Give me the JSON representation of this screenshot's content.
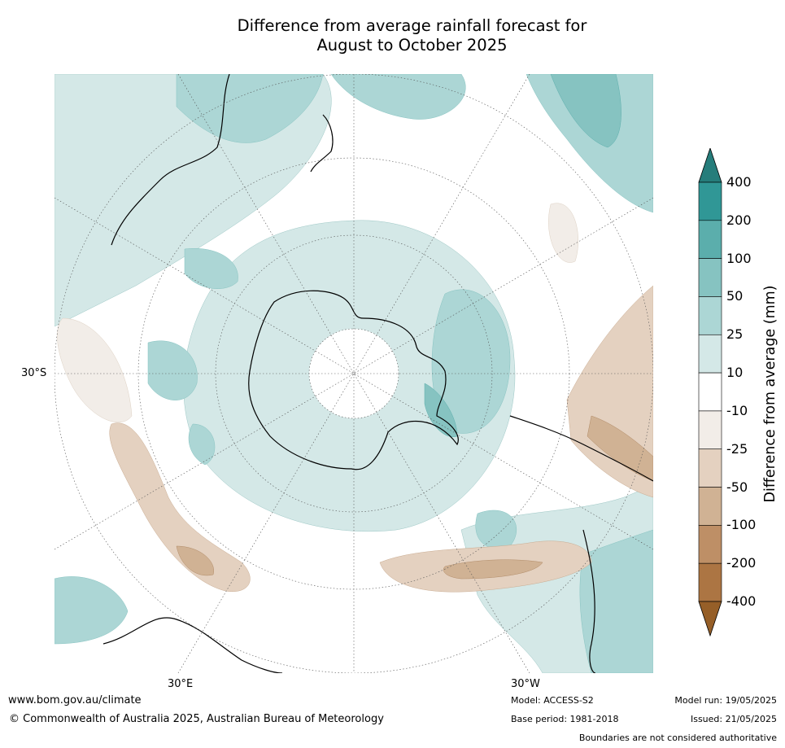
{
  "title_line1": "Difference from average rainfall forecast for",
  "title_line2": "August to October 2025",
  "map_labels": {
    "lat_30s": "30°S",
    "lon_30e": "30°E",
    "lon_30w": "30°W"
  },
  "legend": {
    "title": "Difference from average (mm)",
    "ticks": [
      "400",
      "200",
      "100",
      "50",
      "25",
      "10",
      "-10",
      "-25",
      "-50",
      "-100",
      "-200",
      "-400"
    ],
    "colors": {
      "over": "#267d7b",
      "bands": [
        "#309796",
        "#5baeac",
        "#86c3c1",
        "#acd6d5",
        "#d4e8e7",
        "#ffffff",
        "#f2ede8",
        "#e4d1c0",
        "#d0b294",
        "#be8f66",
        "#ac7543"
      ],
      "under": "#965f28"
    }
  },
  "footer": {
    "website": "www.bom.gov.au/climate",
    "copyright": "© Commonwealth of Australia 2025, Australian Bureau of Meteorology",
    "model": "Model: ACCESS-S2",
    "base_period": "Base period: 1981-2018",
    "model_run": "Model run: 19/05/2025",
    "issued": "Issued: 21/05/2025",
    "disclaimer": "Boundaries are not considered authoritative"
  }
}
